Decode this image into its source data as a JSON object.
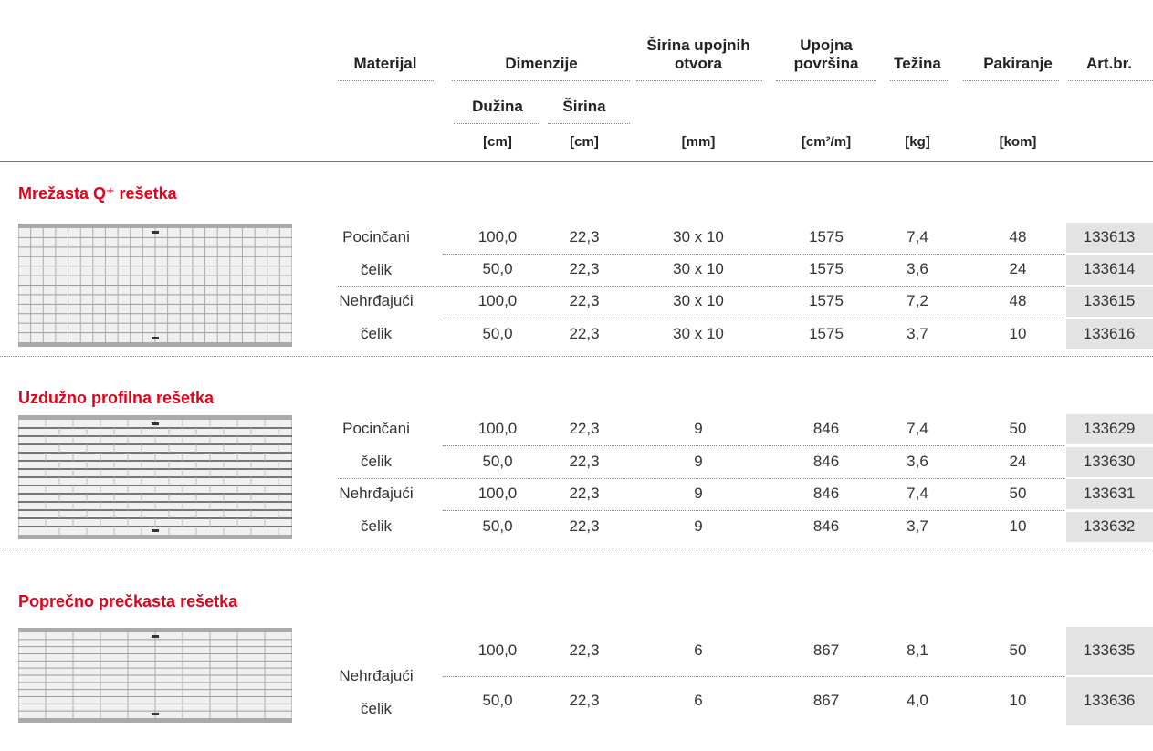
{
  "header": {
    "materijal": "Materijal",
    "dimenzije": "Dimenzije",
    "duzina": "Dužina",
    "sirina": "Širina",
    "sirina_otvora": "Širina upojnih otvora",
    "upojna_povrsina": "Upojna površina",
    "tezina": "Težina",
    "pakiranje": "Pakiranje",
    "art_br": "Art.br.",
    "units": [
      "[cm]",
      "[cm]",
      "[mm]",
      "[cm²/m]",
      "[kg]",
      "[kom]"
    ]
  },
  "sections": [
    {
      "title": "Mrežasta Q⁺ rešetka",
      "groups": [
        {
          "material": "Pocinčani čelik",
          "rows": [
            [
              "100,0",
              "22,3",
              "30 x 10",
              "1575",
              "7,4",
              "48",
              "133613"
            ],
            [
              "50,0",
              "22,3",
              "30 x 10",
              "1575",
              "3,6",
              "24",
              "133614"
            ]
          ]
        },
        {
          "material": "Nehrđajući čelik",
          "rows": [
            [
              "100,0",
              "22,3",
              "30 x 10",
              "1575",
              "7,2",
              "48",
              "133615"
            ],
            [
              "50,0",
              "22,3",
              "30 x 10",
              "1575",
              "3,7",
              "10",
              "133616"
            ]
          ]
        }
      ]
    },
    {
      "title": "Uzdužno profilna rešetka",
      "groups": [
        {
          "material": "Pocinčani čelik",
          "rows": [
            [
              "100,0",
              "22,3",
              "9",
              "846",
              "7,4",
              "50",
              "133629"
            ],
            [
              "50,0",
              "22,3",
              "9",
              "846",
              "3,6",
              "24",
              "133630"
            ]
          ]
        },
        {
          "material": "Nehrđajući čelik",
          "rows": [
            [
              "100,0",
              "22,3",
              "9",
              "846",
              "7,4",
              "50",
              "133631"
            ],
            [
              "50,0",
              "22,3",
              "9",
              "846",
              "3,7",
              "10",
              "133632"
            ]
          ]
        }
      ]
    },
    {
      "title": "Poprečno prečkasta rešetka",
      "groups": [
        {
          "material": "Nehrđajući čelik",
          "rows": [
            [
              "100,0",
              "22,3",
              "6",
              "867",
              "8,1",
              "50",
              "133635"
            ],
            [
              "50,0",
              "22,3",
              "6",
              "867",
              "4,0",
              "10",
              "133636"
            ]
          ]
        }
      ]
    }
  ]
}
